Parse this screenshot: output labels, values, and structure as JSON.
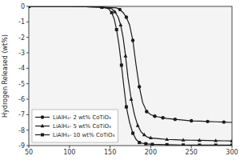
{
  "chart_data": {
    "type": "line",
    "ylabel": "Hydrogen Released (wt%)",
    "xlim": [
      50,
      300
    ],
    "ylim": [
      -9,
      0
    ],
    "xticks": [
      50,
      100,
      150,
      200,
      250,
      300
    ],
    "yticks": [
      0,
      -1,
      -2,
      -3,
      -4,
      -5,
      -6,
      -7,
      -8,
      -9
    ],
    "grid": false,
    "legend": "lower left",
    "series": [
      {
        "name": "LiAlH₄- 2 wt% CoTiO₃",
        "color": "#1a1a1a",
        "marker": "circle",
        "x": [
          50,
          100,
          140,
          158,
          162,
          166,
          170,
          174,
          178,
          182,
          186,
          190,
          195,
          200,
          205,
          210,
          215,
          220,
          230,
          240,
          250,
          260,
          270,
          280,
          290,
          300
        ],
        "values": [
          0,
          0,
          -0.05,
          -0.1,
          -0.2,
          -0.4,
          -0.7,
          -1.2,
          -2.2,
          -3.8,
          -5.2,
          -6.2,
          -6.8,
          -7.0,
          -7.1,
          -7.15,
          -7.2,
          -7.25,
          -7.3,
          -7.35,
          -7.4,
          -7.42,
          -7.44,
          -7.46,
          -7.48,
          -7.5
        ]
      },
      {
        "name": "LiAlH₄- 5 wt% CoTiO₃",
        "color": "#1a1a1a",
        "marker": "triangle",
        "x": [
          50,
          100,
          140,
          152,
          156,
          160,
          163,
          166,
          169,
          172,
          176,
          180,
          184,
          188,
          192,
          196,
          200,
          210,
          220,
          230,
          240,
          250,
          260,
          270,
          280,
          290,
          300
        ],
        "values": [
          0,
          0,
          -0.05,
          -0.15,
          -0.35,
          -0.7,
          -1.2,
          -2.0,
          -3.2,
          -4.6,
          -6.0,
          -7.0,
          -7.7,
          -8.1,
          -8.3,
          -8.45,
          -8.5,
          -8.55,
          -8.6,
          -8.62,
          -8.64,
          -8.65,
          -8.66,
          -8.67,
          -8.68,
          -8.69,
          -8.7
        ]
      },
      {
        "name": "LiAlH₄- 10 wt% CoTiO₃",
        "color": "#1a1a1a",
        "marker": "square",
        "x": [
          50,
          100,
          140,
          148,
          152,
          155,
          158,
          161,
          164,
          167,
          170,
          174,
          178,
          182,
          186,
          190,
          194,
          198,
          202,
          210,
          220,
          230,
          240,
          250,
          260,
          270,
          280,
          290,
          300
        ],
        "values": [
          0,
          0,
          -0.05,
          -0.15,
          -0.4,
          -0.8,
          -1.5,
          -2.5,
          -3.8,
          -5.2,
          -6.5,
          -7.5,
          -8.2,
          -8.6,
          -8.8,
          -8.85,
          -8.88,
          -8.9,
          -8.92,
          -8.93,
          -8.94,
          -8.95,
          -8.96,
          -8.97,
          -8.97,
          -8.97,
          -8.97,
          -8.97,
          -8.97
        ]
      }
    ]
  }
}
